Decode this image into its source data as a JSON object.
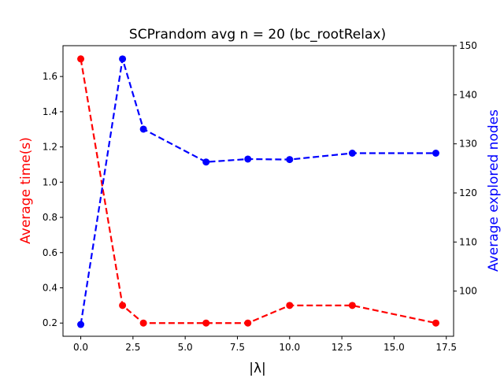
{
  "chart_data": {
    "type": "line",
    "title": "SCPrandom avg n = 20 (bc_rootRelax)",
    "xlabel": "|λ|",
    "ylabel_left": "Average time(s)",
    "ylabel_right": "Average explored nodes",
    "xlim": [
      -0.85,
      17.85
    ],
    "ylim_left": [
      0.125,
      1.775
    ],
    "ylim_right": [
      90.8,
      150
    ],
    "x_ticks": [
      0,
      2.5,
      5,
      7.5,
      10,
      12.5,
      15,
      17.5
    ],
    "x_tick_labels": [
      "0.0",
      "2.5",
      "5.0",
      "7.5",
      "10.0",
      "12.5",
      "15.0",
      "17.5"
    ],
    "y_left_ticks": [
      0.2,
      0.4,
      0.6,
      0.8,
      1.0,
      1.2,
      1.4,
      1.6
    ],
    "y_left_tick_labels": [
      "0.2",
      "0.4",
      "0.6",
      "0.8",
      "1.0",
      "1.2",
      "1.4",
      "1.6"
    ],
    "y_right_ticks": [
      100,
      110,
      120,
      130,
      140,
      150
    ],
    "y_right_tick_labels": [
      "100",
      "110",
      "120",
      "130",
      "140",
      "150"
    ],
    "grid": false,
    "x": [
      0,
      2,
      3,
      6,
      8,
      10,
      13,
      17
    ],
    "series": [
      {
        "axis": "left",
        "color": "#ff0000",
        "style": "dashed",
        "marker": "circle",
        "values": [
          1.7,
          0.3,
          0.2,
          0.2,
          0.2,
          0.3,
          0.3,
          0.2
        ]
      },
      {
        "axis": "right",
        "color": "#0000ff",
        "style": "dashed",
        "marker": "circle",
        "values": [
          93.2,
          147.3,
          133.0,
          126.3,
          126.9,
          126.8,
          128.1,
          128.1
        ]
      }
    ]
  }
}
